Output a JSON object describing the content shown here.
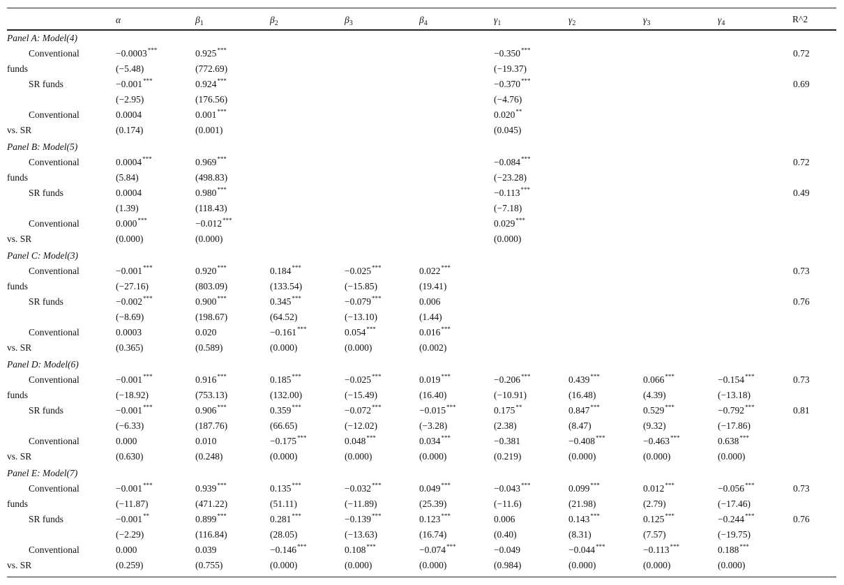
{
  "header": {
    "alpha": "α",
    "beta": "β",
    "gamma": "γ",
    "subs": [
      "1",
      "2",
      "3",
      "4"
    ],
    "r2": "R^2"
  },
  "panels": [
    {
      "title": "Panel A: Model(4)",
      "rows": [
        {
          "label1": "Conventional",
          "label2": "funds",
          "coef": [
            [
              "−0.0003",
              "***"
            ],
            [
              "0.925",
              "***"
            ],
            null,
            null,
            null,
            [
              "−0.350",
              "***"
            ],
            null,
            null,
            null,
            [
              "0.72",
              ""
            ]
          ],
          "t": [
            "(−5.48)",
            "(772.69)",
            null,
            null,
            null,
            "(−19.37)",
            null,
            null,
            null,
            null
          ]
        },
        {
          "label1": "SR funds",
          "label2": "",
          "coef": [
            [
              "−0.001",
              "***"
            ],
            [
              "0.924",
              "***"
            ],
            null,
            null,
            null,
            [
              "−0.370",
              "***"
            ],
            null,
            null,
            null,
            [
              "0.69",
              ""
            ]
          ],
          "t": [
            "(−2.95)",
            "(176.56)",
            null,
            null,
            null,
            "(−4.76)",
            null,
            null,
            null,
            null
          ]
        },
        {
          "label1": "Conventional",
          "label2": "vs. SR",
          "coef": [
            [
              "0.0004",
              ""
            ],
            [
              "0.001",
              "***"
            ],
            null,
            null,
            null,
            [
              "0.020",
              "**"
            ],
            null,
            null,
            null,
            null
          ],
          "t": [
            "(0.174)",
            "(0.001)",
            null,
            null,
            null,
            "(0.045)",
            null,
            null,
            null,
            null
          ]
        }
      ]
    },
    {
      "title": "Panel B: Model(5)",
      "rows": [
        {
          "label1": "Conventional",
          "label2": "funds",
          "coef": [
            [
              "0.0004",
              "***"
            ],
            [
              "0.969",
              "***"
            ],
            null,
            null,
            null,
            [
              "−0.084",
              "***"
            ],
            null,
            null,
            null,
            [
              "0.72",
              ""
            ]
          ],
          "t": [
            "(5.84)",
            "(498.83)",
            null,
            null,
            null,
            "(−23.28)",
            null,
            null,
            null,
            null
          ]
        },
        {
          "label1": "SR funds",
          "label2": "",
          "coef": [
            [
              "0.0004",
              ""
            ],
            [
              "0.980",
              "***"
            ],
            null,
            null,
            null,
            [
              "−0.113",
              "***"
            ],
            null,
            null,
            null,
            [
              "0.49",
              ""
            ]
          ],
          "t": [
            "(1.39)",
            "(118.43)",
            null,
            null,
            null,
            "(−7.18)",
            null,
            null,
            null,
            null
          ]
        },
        {
          "label1": "Conventional",
          "label2": "vs. SR",
          "coef": [
            [
              "0.000",
              "***"
            ],
            [
              "−0.012",
              "***"
            ],
            null,
            null,
            null,
            [
              "0.029",
              "***"
            ],
            null,
            null,
            null,
            null
          ],
          "t": [
            "(0.000)",
            "(0.000)",
            null,
            null,
            null,
            "(0.000)",
            null,
            null,
            null,
            null
          ]
        }
      ]
    },
    {
      "title": "Panel C: Model(3)",
      "rows": [
        {
          "label1": "Conventional",
          "label2": "funds",
          "coef": [
            [
              "−0.001",
              "***"
            ],
            [
              "0.920",
              "***"
            ],
            [
              "0.184",
              "***"
            ],
            [
              "−0.025",
              "***"
            ],
            [
              "0.022",
              "***"
            ],
            null,
            null,
            null,
            null,
            [
              "0.73",
              ""
            ]
          ],
          "t": [
            "(−27.16)",
            "(803.09)",
            "(133.54)",
            "(−15.85)",
            "(19.41)",
            null,
            null,
            null,
            null,
            null
          ]
        },
        {
          "label1": "SR funds",
          "label2": "",
          "coef": [
            [
              "−0.002",
              "***"
            ],
            [
              "0.900",
              "***"
            ],
            [
              "0.345",
              "***"
            ],
            [
              "−0.079",
              "***"
            ],
            [
              "0.006",
              ""
            ],
            null,
            null,
            null,
            null,
            [
              "0.76",
              ""
            ]
          ],
          "t": [
            "(−8.69)",
            "(198.67)",
            "(64.52)",
            "(−13.10)",
            "(1.44)",
            null,
            null,
            null,
            null,
            null
          ]
        },
        {
          "label1": "Conventional",
          "label2": "vs. SR",
          "coef": [
            [
              "0.0003",
              ""
            ],
            [
              "0.020",
              ""
            ],
            [
              "−0.161",
              "***"
            ],
            [
              "0.054",
              "***"
            ],
            [
              "0.016",
              "***"
            ],
            null,
            null,
            null,
            null,
            null
          ],
          "t": [
            "(0.365)",
            "(0.589)",
            "(0.000)",
            "(0.000)",
            "(0.002)",
            null,
            null,
            null,
            null,
            null
          ]
        }
      ]
    },
    {
      "title": "Panel D: Model(6)",
      "rows": [
        {
          "label1": "Conventional",
          "label2": "funds",
          "coef": [
            [
              "−0.001",
              "***"
            ],
            [
              "0.916",
              "***"
            ],
            [
              "0.185",
              "***"
            ],
            [
              "−0.025",
              "***"
            ],
            [
              "0.019",
              "***"
            ],
            [
              "−0.206",
              "***"
            ],
            [
              "0.439",
              "***"
            ],
            [
              "0.066",
              "***"
            ],
            [
              "−0.154",
              "***"
            ],
            [
              "0.73",
              ""
            ]
          ],
          "t": [
            "(−18.92)",
            "(753.13)",
            "(132.00)",
            "(−15.49)",
            "(16.40)",
            "(−10.91)",
            "(16.48)",
            "(4.39)",
            "(−13.18)",
            null
          ]
        },
        {
          "label1": "SR funds",
          "label2": "",
          "coef": [
            [
              "−0.001",
              "***"
            ],
            [
              "0.906",
              "***"
            ],
            [
              "0.359",
              "***"
            ],
            [
              "−0.072",
              "***"
            ],
            [
              "−0.015",
              "***"
            ],
            [
              "0.175",
              "**"
            ],
            [
              "0.847",
              "***"
            ],
            [
              "0.529",
              "***"
            ],
            [
              "−0.792",
              "***"
            ],
            [
              "0.81",
              ""
            ]
          ],
          "t": [
            "(−6.33)",
            "(187.76)",
            "(66.65)",
            "(−12.02)",
            "(−3.28)",
            "(2.38)",
            "(8.47)",
            "(9.32)",
            "(−17.86)",
            null
          ]
        },
        {
          "label1": "Conventional",
          "label2": "vs. SR",
          "coef": [
            [
              "0.000",
              ""
            ],
            [
              "0.010",
              ""
            ],
            [
              "−0.175",
              "***"
            ],
            [
              "0.048",
              "***"
            ],
            [
              "0.034",
              "***"
            ],
            [
              "−0.381",
              ""
            ],
            [
              "−0.408",
              "***"
            ],
            [
              "−0.463",
              "***"
            ],
            [
              "0.638",
              "***"
            ],
            null
          ],
          "t": [
            "(0.630)",
            "(0.248)",
            "(0.000)",
            "(0.000)",
            "(0.000)",
            "(0.219)",
            "(0.000)",
            "(0.000)",
            "(0.000)",
            null
          ]
        }
      ]
    },
    {
      "title": "Panel E: Model(7)",
      "rows": [
        {
          "label1": "Conventional",
          "label2": "funds",
          "coef": [
            [
              "−0.001",
              "***"
            ],
            [
              "0.939",
              "***"
            ],
            [
              "0.135",
              "***"
            ],
            [
              "−0.032",
              "***"
            ],
            [
              "0.049",
              "***"
            ],
            [
              "−0.043",
              "***"
            ],
            [
              "0.099",
              "***"
            ],
            [
              "0.012",
              "***"
            ],
            [
              "−0.056",
              "***"
            ],
            [
              "0.73",
              ""
            ]
          ],
          "t": [
            "(−11.87)",
            "(471.22)",
            "(51.11)",
            "(−11.89)",
            "(25.39)",
            "(−11.6)",
            "(21.98)",
            "(2.79)",
            "(−17.46)",
            null
          ]
        },
        {
          "label1": "SR funds",
          "label2": "",
          "coef": [
            [
              "−0.001",
              "**"
            ],
            [
              "0.899",
              "***"
            ],
            [
              "0.281",
              "***"
            ],
            [
              "−0.139",
              "***"
            ],
            [
              "0.123",
              "***"
            ],
            [
              "0.006",
              ""
            ],
            [
              "0.143",
              "***"
            ],
            [
              "0.125",
              "***"
            ],
            [
              "−0.244",
              "***"
            ],
            [
              "0.76",
              ""
            ]
          ],
          "t": [
            "(−2.29)",
            "(116.84)",
            "(28.05)",
            "(−13.63)",
            "(16.74)",
            "(0.40)",
            "(8.31)",
            "(7.57)",
            "(−19.75)",
            null
          ]
        },
        {
          "label1": "Conventional",
          "label2": "vs. SR",
          "coef": [
            [
              "0.000",
              ""
            ],
            [
              "0.039",
              ""
            ],
            [
              "−0.146",
              "***"
            ],
            [
              "0.108",
              "***"
            ],
            [
              "−0.074",
              "***"
            ],
            [
              "−0.049",
              ""
            ],
            [
              "−0.044",
              "***"
            ],
            [
              "−0.113",
              "***"
            ],
            [
              "0.188",
              "***"
            ],
            null
          ],
          "t": [
            "(0.259)",
            "(0.755)",
            "(0.000)",
            "(0.000)",
            "(0.000)",
            "(0.984)",
            "(0.000)",
            "(0.000)",
            "(0.000)",
            null
          ]
        }
      ]
    }
  ]
}
